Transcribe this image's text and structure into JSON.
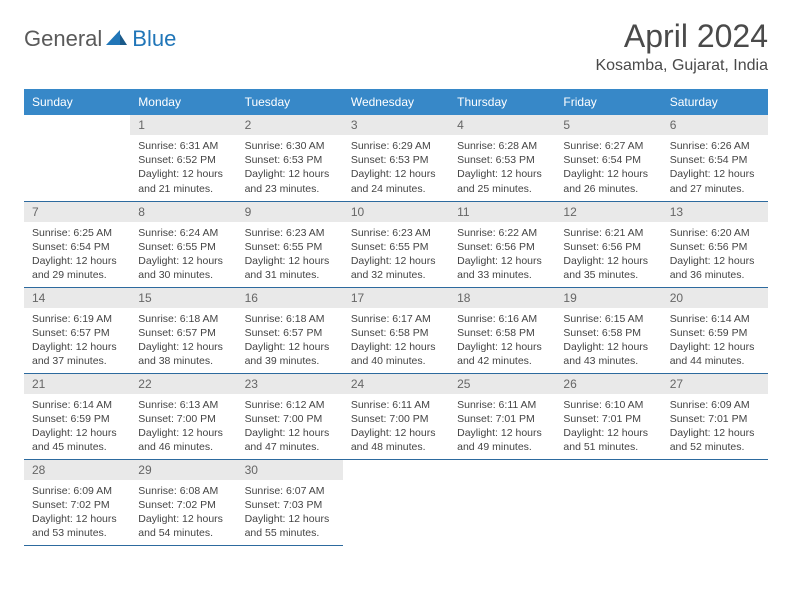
{
  "logo": {
    "part1": "General",
    "part2": "Blue"
  },
  "title": "April 2024",
  "location": "Kosamba, Gujarat, India",
  "weekdays": [
    "Sunday",
    "Monday",
    "Tuesday",
    "Wednesday",
    "Thursday",
    "Friday",
    "Saturday"
  ],
  "colors": {
    "header_bg": "#3788c8",
    "header_text": "#ffffff",
    "daynum_bg": "#e9e9e9",
    "border": "#2d6a9e",
    "logo_accent": "#2176b8",
    "logo_gray": "#5a5a5a"
  },
  "weeks": [
    [
      null,
      {
        "n": "1",
        "sr": "6:31 AM",
        "ss": "6:52 PM",
        "dl": "12 hours and 21 minutes."
      },
      {
        "n": "2",
        "sr": "6:30 AM",
        "ss": "6:53 PM",
        "dl": "12 hours and 23 minutes."
      },
      {
        "n": "3",
        "sr": "6:29 AM",
        "ss": "6:53 PM",
        "dl": "12 hours and 24 minutes."
      },
      {
        "n": "4",
        "sr": "6:28 AM",
        "ss": "6:53 PM",
        "dl": "12 hours and 25 minutes."
      },
      {
        "n": "5",
        "sr": "6:27 AM",
        "ss": "6:54 PM",
        "dl": "12 hours and 26 minutes."
      },
      {
        "n": "6",
        "sr": "6:26 AM",
        "ss": "6:54 PM",
        "dl": "12 hours and 27 minutes."
      }
    ],
    [
      {
        "n": "7",
        "sr": "6:25 AM",
        "ss": "6:54 PM",
        "dl": "12 hours and 29 minutes."
      },
      {
        "n": "8",
        "sr": "6:24 AM",
        "ss": "6:55 PM",
        "dl": "12 hours and 30 minutes."
      },
      {
        "n": "9",
        "sr": "6:23 AM",
        "ss": "6:55 PM",
        "dl": "12 hours and 31 minutes."
      },
      {
        "n": "10",
        "sr": "6:23 AM",
        "ss": "6:55 PM",
        "dl": "12 hours and 32 minutes."
      },
      {
        "n": "11",
        "sr": "6:22 AM",
        "ss": "6:56 PM",
        "dl": "12 hours and 33 minutes."
      },
      {
        "n": "12",
        "sr": "6:21 AM",
        "ss": "6:56 PM",
        "dl": "12 hours and 35 minutes."
      },
      {
        "n": "13",
        "sr": "6:20 AM",
        "ss": "6:56 PM",
        "dl": "12 hours and 36 minutes."
      }
    ],
    [
      {
        "n": "14",
        "sr": "6:19 AM",
        "ss": "6:57 PM",
        "dl": "12 hours and 37 minutes."
      },
      {
        "n": "15",
        "sr": "6:18 AM",
        "ss": "6:57 PM",
        "dl": "12 hours and 38 minutes."
      },
      {
        "n": "16",
        "sr": "6:18 AM",
        "ss": "6:57 PM",
        "dl": "12 hours and 39 minutes."
      },
      {
        "n": "17",
        "sr": "6:17 AM",
        "ss": "6:58 PM",
        "dl": "12 hours and 40 minutes."
      },
      {
        "n": "18",
        "sr": "6:16 AM",
        "ss": "6:58 PM",
        "dl": "12 hours and 42 minutes."
      },
      {
        "n": "19",
        "sr": "6:15 AM",
        "ss": "6:58 PM",
        "dl": "12 hours and 43 minutes."
      },
      {
        "n": "20",
        "sr": "6:14 AM",
        "ss": "6:59 PM",
        "dl": "12 hours and 44 minutes."
      }
    ],
    [
      {
        "n": "21",
        "sr": "6:14 AM",
        "ss": "6:59 PM",
        "dl": "12 hours and 45 minutes."
      },
      {
        "n": "22",
        "sr": "6:13 AM",
        "ss": "7:00 PM",
        "dl": "12 hours and 46 minutes."
      },
      {
        "n": "23",
        "sr": "6:12 AM",
        "ss": "7:00 PM",
        "dl": "12 hours and 47 minutes."
      },
      {
        "n": "24",
        "sr": "6:11 AM",
        "ss": "7:00 PM",
        "dl": "12 hours and 48 minutes."
      },
      {
        "n": "25",
        "sr": "6:11 AM",
        "ss": "7:01 PM",
        "dl": "12 hours and 49 minutes."
      },
      {
        "n": "26",
        "sr": "6:10 AM",
        "ss": "7:01 PM",
        "dl": "12 hours and 51 minutes."
      },
      {
        "n": "27",
        "sr": "6:09 AM",
        "ss": "7:01 PM",
        "dl": "12 hours and 52 minutes."
      }
    ],
    [
      {
        "n": "28",
        "sr": "6:09 AM",
        "ss": "7:02 PM",
        "dl": "12 hours and 53 minutes."
      },
      {
        "n": "29",
        "sr": "6:08 AM",
        "ss": "7:02 PM",
        "dl": "12 hours and 54 minutes."
      },
      {
        "n": "30",
        "sr": "6:07 AM",
        "ss": "7:03 PM",
        "dl": "12 hours and 55 minutes."
      },
      null,
      null,
      null,
      null
    ]
  ],
  "labels": {
    "sunrise": "Sunrise:",
    "sunset": "Sunset:",
    "daylight": "Daylight:"
  }
}
